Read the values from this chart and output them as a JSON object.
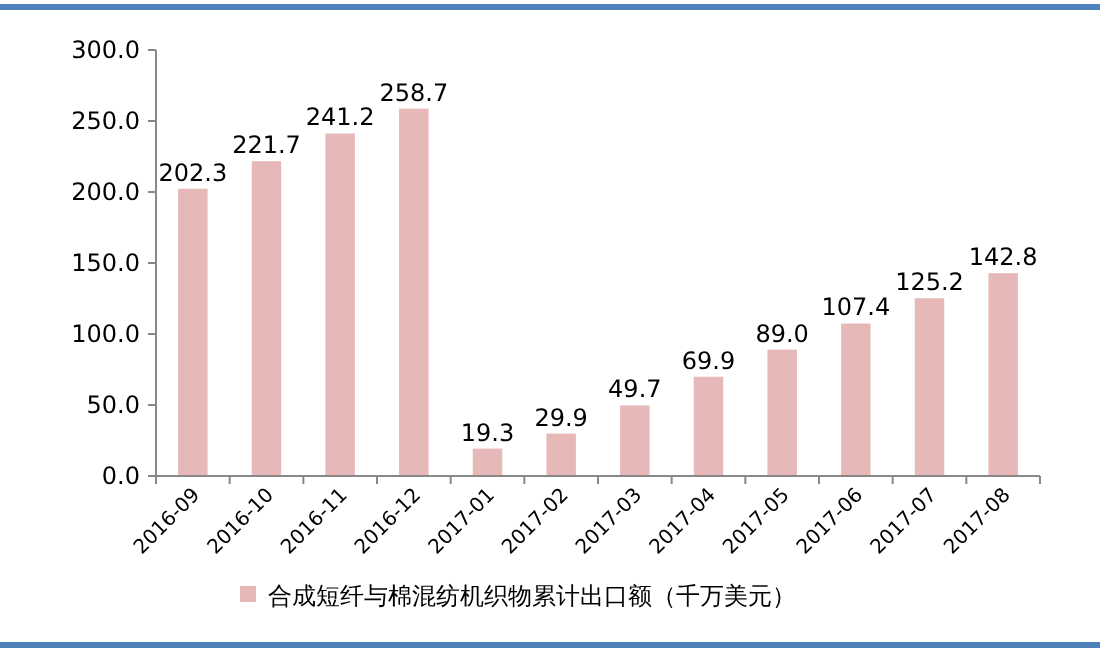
{
  "chart_data": {
    "type": "bar",
    "categories": [
      "2016-09",
      "2016-10",
      "2016-11",
      "2016-12",
      "2017-01",
      "2017-02",
      "2017-03",
      "2017-04",
      "2017-05",
      "2017-06",
      "2017-07",
      "2017-08"
    ],
    "series": [
      {
        "name": "合成短纤与棉混纺机织物累计出口额（千万美元）",
        "color": "#e6b8b7",
        "values": [
          202.3,
          221.7,
          241.2,
          258.7,
          19.3,
          29.9,
          49.7,
          69.9,
          89.0,
          107.4,
          125.2,
          142.8
        ],
        "value_labels": [
          "202.3",
          "221.7",
          "241.2",
          "258.7",
          "19.3",
          "29.9",
          "49.7",
          "69.9",
          "89.0",
          "107.4",
          "125.2",
          "142.8"
        ]
      }
    ],
    "ylim": [
      0,
      300
    ],
    "yticks": [
      {
        "value": 0,
        "label": "0.0"
      },
      {
        "value": 50,
        "label": "50.0"
      },
      {
        "value": 100,
        "label": "100.0"
      },
      {
        "value": 150,
        "label": "150.0"
      },
      {
        "value": 200,
        "label": "200.0"
      },
      {
        "value": 250,
        "label": "250.0"
      },
      {
        "value": 300,
        "label": "300.0"
      }
    ],
    "grid": false,
    "legend": "bottom"
  }
}
